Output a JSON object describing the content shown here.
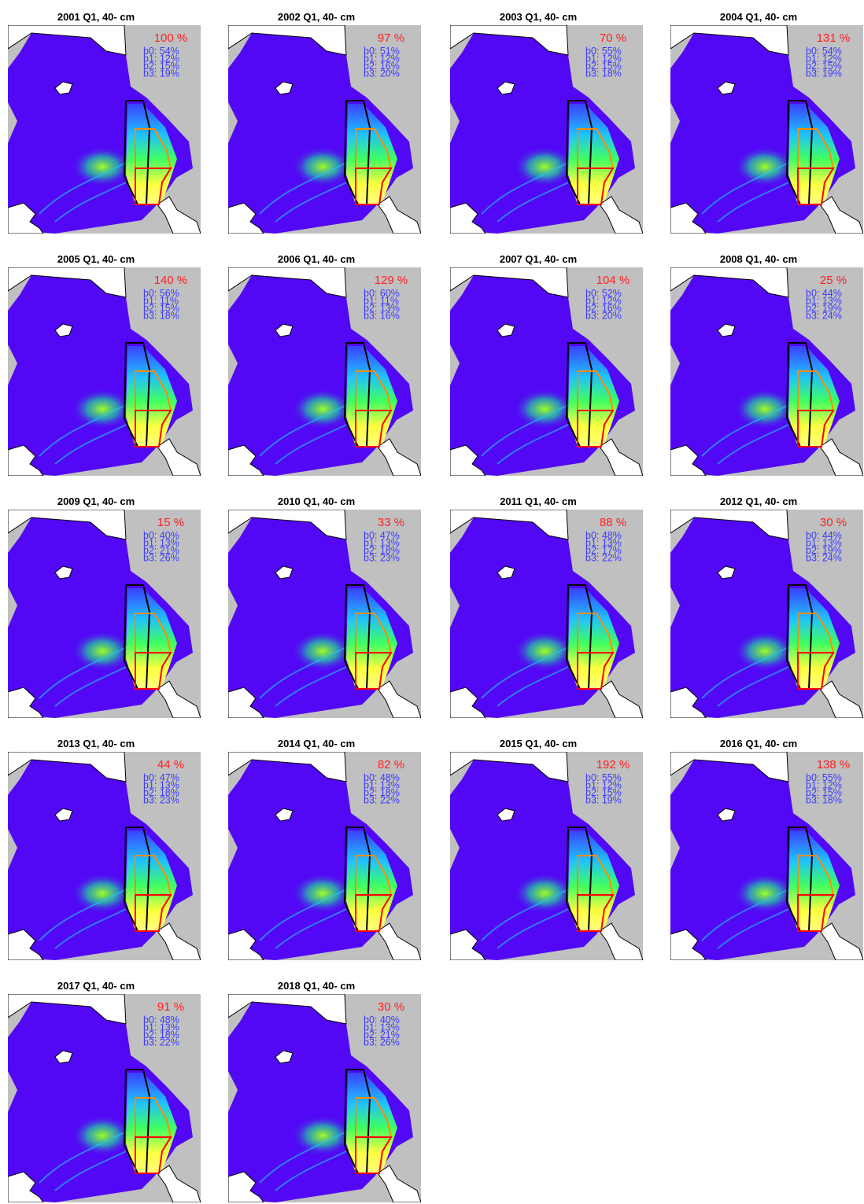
{
  "panels": [
    {
      "title": "2001 Q1, 40- cm",
      "percent": "100 %",
      "shares": [
        "b0: 54%",
        "b1: 12%",
        "b2: 15%",
        "b3: 19%"
      ]
    },
    {
      "title": "2002 Q1, 40- cm",
      "percent": "97 %",
      "shares": [
        "b0: 51%",
        "b1: 12%",
        "b2: 16%",
        "b3: 20%"
      ]
    },
    {
      "title": "2003 Q1, 40- cm",
      "percent": "70 %",
      "shares": [
        "b0: 55%",
        "b1: 12%",
        "b2: 15%",
        "b3: 18%"
      ]
    },
    {
      "title": "2004 Q1, 40- cm",
      "percent": "131 %",
      "shares": [
        "b0: 54%",
        "b1: 12%",
        "b2: 15%",
        "b3: 19%"
      ]
    },
    {
      "title": "2005 Q1, 40- cm",
      "percent": "140 %",
      "shares": [
        "b0: 56%",
        "b1: 11%",
        "b2: 15%",
        "b3: 18%"
      ]
    },
    {
      "title": "2006 Q1, 40- cm",
      "percent": "129 %",
      "shares": [
        "b0: 60%",
        "b1: 11%",
        "b2: 13%",
        "b3: 16%"
      ]
    },
    {
      "title": "2007 Q1, 40- cm",
      "percent": "104 %",
      "shares": [
        "b0: 52%",
        "b1: 12%",
        "b2: 16%",
        "b3: 20%"
      ]
    },
    {
      "title": "2008 Q1, 40- cm",
      "percent": "25 %",
      "shares": [
        "b0: 44%",
        "b1: 13%",
        "b2: 19%",
        "b3: 24%"
      ]
    },
    {
      "title": "2009 Q1, 40- cm",
      "percent": "15 %",
      "shares": [
        "b0: 40%",
        "b1: 13%",
        "b2: 21%",
        "b3: 26%"
      ]
    },
    {
      "title": "2010 Q1, 40- cm",
      "percent": "33 %",
      "shares": [
        "b0: 47%",
        "b1: 13%",
        "b2: 18%",
        "b3: 23%"
      ]
    },
    {
      "title": "2011 Q1, 40- cm",
      "percent": "88 %",
      "shares": [
        "b0: 48%",
        "b1: 13%",
        "b2: 17%",
        "b3: 22%"
      ]
    },
    {
      "title": "2012 Q1, 40- cm",
      "percent": "30 %",
      "shares": [
        "b0: 44%",
        "b1: 13%",
        "b2: 19%",
        "b3: 24%"
      ]
    },
    {
      "title": "2013 Q1, 40- cm",
      "percent": "44 %",
      "shares": [
        "b0: 47%",
        "b1: 13%",
        "b2: 18%",
        "b3: 23%"
      ]
    },
    {
      "title": "2014 Q1, 40- cm",
      "percent": "82 %",
      "shares": [
        "b0: 48%",
        "b1: 13%",
        "b2: 18%",
        "b3: 22%"
      ]
    },
    {
      "title": "2015 Q1, 40- cm",
      "percent": "192 %",
      "shares": [
        "b0: 55%",
        "b1: 12%",
        "b2: 15%",
        "b3: 19%"
      ]
    },
    {
      "title": "2016 Q1, 40- cm",
      "percent": "138 %",
      "shares": [
        "b0: 55%",
        "b1: 12%",
        "b2: 15%",
        "b3: 18%"
      ]
    },
    {
      "title": "2017 Q1, 40- cm",
      "percent": "91 %",
      "shares": [
        "b0: 48%",
        "b1: 13%",
        "b2: 18%",
        "b3: 22%"
      ]
    },
    {
      "title": "2018 Q1, 40- cm",
      "percent": "30 %",
      "shares": [
        "b0: 40%",
        "b1: 13%",
        "b2: 21%",
        "b3: 26%"
      ]
    }
  ]
}
